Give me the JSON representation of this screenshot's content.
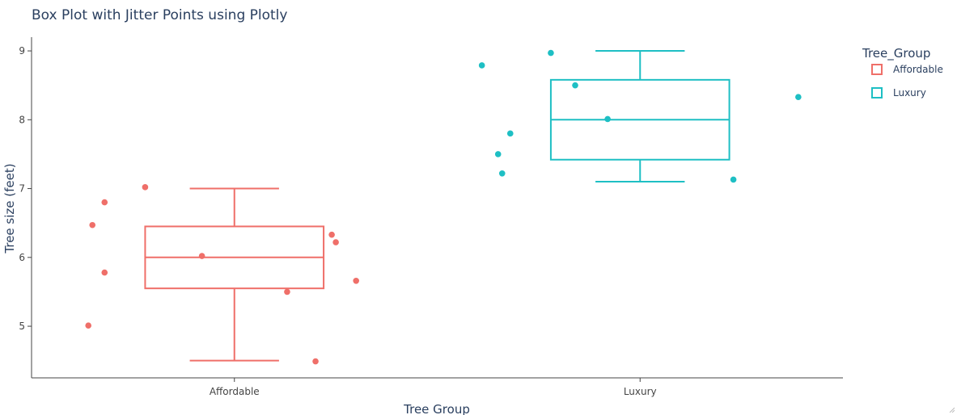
{
  "chart_data": {
    "type": "box",
    "title": "Box Plot with Jitter Points using Plotly",
    "xlabel": "Tree Group",
    "ylabel": "Tree size (feet)",
    "categories": [
      "Affordable",
      "Luxury"
    ],
    "ylim": [
      4.25,
      9.2
    ],
    "yticks": [
      5,
      6,
      7,
      8,
      9
    ],
    "grid": false,
    "legend": {
      "title": "Tree_Group",
      "placement": "top-right"
    },
    "series": [
      {
        "name": "Affordable",
        "color": "#ef6f69",
        "box": {
          "min": 4.5,
          "q1": 5.55,
          "median": 6.0,
          "q3": 6.45,
          "max": 7.0
        },
        "points": [
          {
            "x": -0.36,
            "y": 5.01
          },
          {
            "x": -0.35,
            "y": 6.47
          },
          {
            "x": -0.32,
            "y": 6.8
          },
          {
            "x": -0.32,
            "y": 5.78
          },
          {
            "x": -0.22,
            "y": 7.02
          },
          {
            "x": -0.08,
            "y": 6.02
          },
          {
            "x": 0.13,
            "y": 5.5
          },
          {
            "x": 0.2,
            "y": 4.49
          },
          {
            "x": 0.24,
            "y": 6.33
          },
          {
            "x": 0.25,
            "y": 6.22
          },
          {
            "x": 0.3,
            "y": 5.66
          }
        ]
      },
      {
        "name": "Luxury",
        "color": "#1ebfc4",
        "box": {
          "min": 7.1,
          "q1": 7.42,
          "median": 8.0,
          "q3": 8.58,
          "max": 9.0
        },
        "points": [
          {
            "x": -0.39,
            "y": 8.79
          },
          {
            "x": -0.35,
            "y": 7.5
          },
          {
            "x": -0.34,
            "y": 7.22
          },
          {
            "x": -0.32,
            "y": 7.8
          },
          {
            "x": -0.22,
            "y": 8.97
          },
          {
            "x": -0.16,
            "y": 8.5
          },
          {
            "x": -0.08,
            "y": 8.01
          },
          {
            "x": 0.23,
            "y": 7.13
          },
          {
            "x": 0.39,
            "y": 8.33
          }
        ]
      }
    ]
  }
}
